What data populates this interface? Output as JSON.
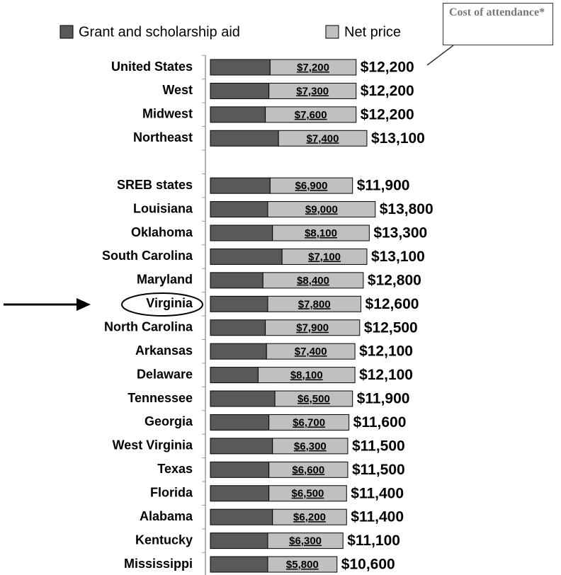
{
  "chart_data": {
    "type": "stacked-bar-horizontal",
    "categories": [
      "United States",
      "West",
      "Midwest",
      "Northeast",
      null,
      "SREB states",
      "Louisiana",
      "Oklahoma",
      "South Carolina",
      "Maryland",
      "Virginia",
      "North Carolina",
      "Arkansas",
      "Delaware",
      "Tennessee",
      "Georgia",
      "West Virginia",
      "Texas",
      "Florida",
      "Alabama",
      "Kentucky",
      "Mississippi"
    ],
    "series": [
      {
        "name": "Grant and scholarship aid",
        "color": "#595959",
        "values": [
          5000,
          4900,
          4600,
          5700,
          null,
          5000,
          4800,
          5200,
          6000,
          4400,
          4800,
          4600,
          4700,
          4000,
          5400,
          4900,
          5200,
          4900,
          4900,
          5200,
          4800,
          4800
        ]
      },
      {
        "name": "Net price",
        "color": "#c0c0c0",
        "values": [
          7200,
          7300,
          7600,
          7400,
          null,
          6900,
          9000,
          8100,
          7100,
          8400,
          7800,
          7900,
          7400,
          8100,
          6500,
          6700,
          6300,
          6600,
          6500,
          6200,
          6300,
          5800
        ],
        "value_labels": [
          "$7,200",
          "$7,300",
          "$7,600",
          "$7,400",
          null,
          "$6,900",
          "$9,000",
          "$8,100",
          "$7,100",
          "$8,400",
          "$7,800",
          "$7,900",
          "$7,400",
          "$8,100",
          "$6,500",
          "$6,700",
          "$6,300",
          "$6,600",
          "$6,500",
          "$6,200",
          "$6,300",
          "$5,800"
        ]
      }
    ],
    "totals": {
      "values": [
        12200,
        12200,
        12200,
        13100,
        null,
        11900,
        13800,
        13300,
        13100,
        12800,
        12600,
        12500,
        12100,
        12100,
        11900,
        11600,
        11500,
        11500,
        11400,
        11400,
        11100,
        10600
      ],
      "value_labels": [
        "$12,200",
        "$12,200",
        "$12,200",
        "$13,100",
        null,
        "$11,900",
        "$13,800",
        "$13,300",
        "$13,100",
        "$12,800",
        "$12,600",
        "$12,500",
        "$12,100",
        "$12,100",
        "$11,900",
        "$11,600",
        "$11,500",
        "$11,500",
        "$11,400",
        "$11,400",
        "$11,100",
        "$10,600"
      ]
    },
    "annotation": "Cost of attendance*",
    "xlim": [
      0,
      15000
    ]
  }
}
